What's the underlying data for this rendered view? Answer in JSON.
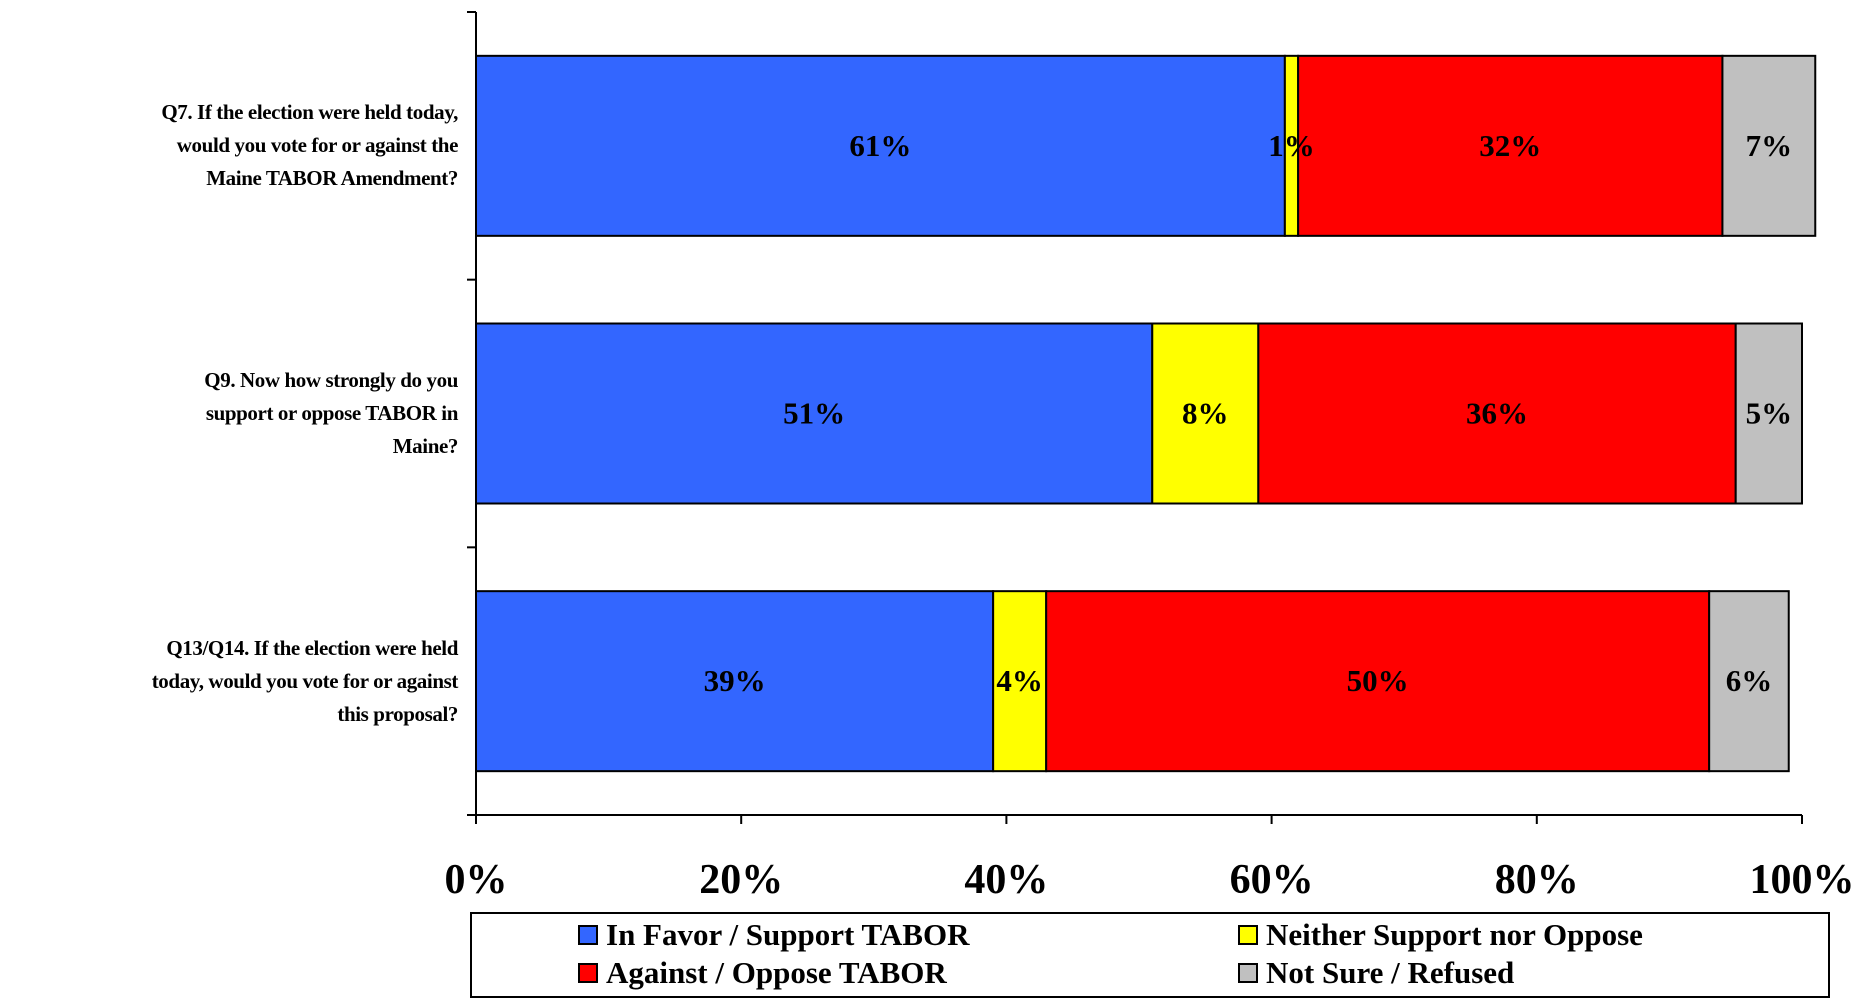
{
  "chart_data": {
    "type": "bar",
    "orientation": "horizontal",
    "stacked": true,
    "categories": [
      "Q7.  If the election were held today, would you vote for or against the Maine TABOR Amendment?",
      "Q9.  Now how strongly do you support or oppose TABOR in Maine?",
      "Q13/Q14.  If the election were held today, would you vote for or against this proposal?"
    ],
    "category_lines": [
      [
        "Q7.  If the election were held today,",
        "would you vote for or against the",
        "Maine TABOR Amendment?"
      ],
      [
        "Q9.  Now how strongly do you",
        "support or oppose TABOR in",
        "Maine?"
      ],
      [
        "Q13/Q14.  If the election were held",
        "today, would you vote for or against",
        "this proposal?"
      ]
    ],
    "series": [
      {
        "name": "In Favor / Support TABOR",
        "color": "#3366FF",
        "values": [
          61,
          51,
          39
        ],
        "labels": [
          "61%",
          "51%",
          "39%"
        ]
      },
      {
        "name": "Neither Support nor Oppose",
        "color": "#FFFF00",
        "values": [
          1,
          8,
          4
        ],
        "labels": [
          "1%",
          "8%",
          "4%"
        ]
      },
      {
        "name": "Against / Oppose TABOR",
        "color": "#FF0000",
        "values": [
          32,
          36,
          50
        ],
        "labels": [
          "32%",
          "36%",
          "50%"
        ]
      },
      {
        "name": "Not Sure / Refused",
        "color": "#C0C0C0",
        "values": [
          7,
          5,
          6
        ],
        "labels": [
          "7%",
          "5%",
          "6%"
        ]
      }
    ],
    "xlim": [
      0,
      100
    ],
    "x_ticks": [
      0,
      20,
      40,
      60,
      80,
      100
    ],
    "x_tick_labels": [
      "0%",
      "20%",
      "40%",
      "60%",
      "80%",
      "100%"
    ],
    "legend_position": "bottom",
    "grid": false
  }
}
